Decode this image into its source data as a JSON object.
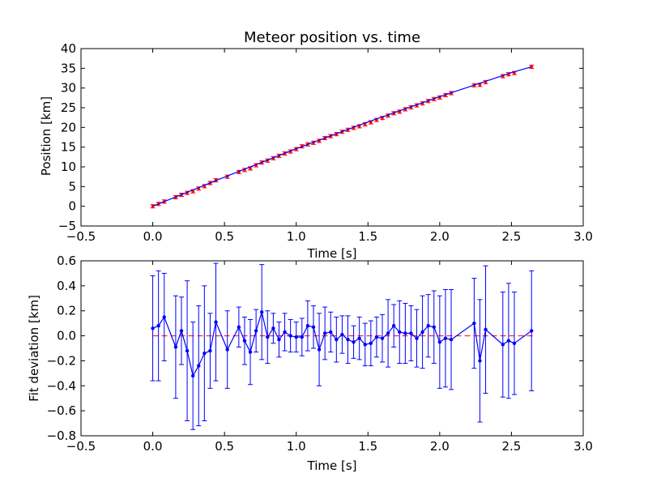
{
  "chart_data": [
    {
      "type": "line",
      "title": "Meteor position vs. time",
      "xlabel": "Time [s]",
      "ylabel": "Position [km]",
      "xlim": [
        -0.5,
        3.0
      ],
      "ylim": [
        -5,
        40
      ],
      "xticks": [
        -0.5,
        0.0,
        0.5,
        1.0,
        1.5,
        2.0,
        2.5,
        3.0
      ],
      "xtick_labels": [
        "−0.5",
        "0.0",
        "0.5",
        "1.0",
        "1.5",
        "2.0",
        "2.5",
        "3.0"
      ],
      "yticks": [
        -5,
        0,
        5,
        10,
        15,
        20,
        25,
        30,
        35,
        40
      ],
      "ytick_labels": [
        "−5",
        "0",
        "5",
        "10",
        "15",
        "20",
        "25",
        "30",
        "35",
        "40"
      ],
      "grid": false,
      "series": [
        {
          "style": "red errorbar points",
          "color": "#ff0000",
          "x": [
            0.0,
            0.04,
            0.08,
            0.16,
            0.2,
            0.24,
            0.28,
            0.32,
            0.36,
            0.4,
            0.44,
            0.52,
            0.6,
            0.64,
            0.68,
            0.72,
            0.76,
            0.8,
            0.84,
            0.88,
            0.92,
            0.96,
            1.0,
            1.04,
            1.08,
            1.12,
            1.16,
            1.2,
            1.24,
            1.28,
            1.32,
            1.36,
            1.4,
            1.44,
            1.48,
            1.52,
            1.56,
            1.6,
            1.64,
            1.68,
            1.72,
            1.76,
            1.8,
            1.84,
            1.88,
            1.92,
            1.96,
            2.0,
            2.04,
            2.08,
            2.24,
            2.28,
            2.32,
            2.44,
            2.48,
            2.52,
            2.64
          ],
          "y": [
            0.0,
            0.6,
            1.2,
            2.3,
            2.9,
            3.4,
            3.8,
            4.5,
            5.1,
            5.9,
            6.6,
            7.5,
            8.7,
            9.2,
            9.6,
            10.4,
            11.1,
            11.6,
            12.2,
            12.8,
            13.4,
            13.9,
            14.5,
            15.2,
            15.7,
            16.1,
            16.6,
            17.3,
            17.8,
            18.3,
            18.9,
            19.4,
            19.9,
            20.3,
            20.8,
            21.3,
            21.9,
            22.4,
            23.0,
            23.6,
            24.0,
            24.6,
            25.1,
            25.6,
            26.1,
            26.7,
            27.2,
            27.6,
            28.2,
            28.7,
            30.7,
            30.8,
            31.5,
            33.0,
            33.5,
            33.8,
            35.4
          ],
          "yerr": 0.42
        },
        {
          "style": "blue fit line",
          "color": "#0000ff",
          "x": [
            0.0,
            0.5,
            1.0,
            1.5,
            2.0,
            2.5,
            2.64
          ],
          "y": [
            0.0,
            7.4,
            14.6,
            21.4,
            27.8,
            33.9,
            35.4
          ]
        }
      ]
    },
    {
      "type": "line",
      "title": "",
      "xlabel": "Time [s]",
      "ylabel": "Fit deviation [km]",
      "xlim": [
        -0.5,
        3.0
      ],
      "ylim": [
        -0.8,
        0.6
      ],
      "xticks": [
        -0.5,
        0.0,
        0.5,
        1.0,
        1.5,
        2.0,
        2.5,
        3.0
      ],
      "xtick_labels": [
        "−0.5",
        "0.0",
        "0.5",
        "1.0",
        "1.5",
        "2.0",
        "2.5",
        "3.0"
      ],
      "yticks": [
        -0.8,
        -0.6,
        -0.4,
        -0.2,
        0.0,
        0.2,
        0.4,
        0.6
      ],
      "ytick_labels": [
        "−0.8",
        "−0.6",
        "−0.4",
        "−0.2",
        "0.0",
        "0.2",
        "0.4",
        "0.6"
      ],
      "grid": false,
      "reference_line": {
        "y": 0.0,
        "style": "dashed",
        "color": "#ff0000"
      },
      "series": [
        {
          "style": "blue line with error bars",
          "color": "#0000ff",
          "x": [
            0.0,
            0.04,
            0.08,
            0.16,
            0.2,
            0.24,
            0.28,
            0.32,
            0.36,
            0.4,
            0.44,
            0.52,
            0.6,
            0.64,
            0.68,
            0.72,
            0.76,
            0.8,
            0.84,
            0.88,
            0.92,
            0.96,
            1.0,
            1.04,
            1.08,
            1.12,
            1.16,
            1.2,
            1.24,
            1.28,
            1.32,
            1.36,
            1.4,
            1.44,
            1.48,
            1.52,
            1.56,
            1.6,
            1.64,
            1.68,
            1.72,
            1.76,
            1.8,
            1.84,
            1.88,
            1.92,
            1.96,
            2.0,
            2.04,
            2.08,
            2.24,
            2.28,
            2.32,
            2.44,
            2.48,
            2.52,
            2.64
          ],
          "y": [
            0.06,
            0.08,
            0.15,
            -0.09,
            0.04,
            -0.12,
            -0.32,
            -0.24,
            -0.14,
            -0.12,
            0.11,
            -0.11,
            0.07,
            -0.04,
            -0.13,
            0.04,
            0.19,
            -0.01,
            0.06,
            -0.03,
            0.03,
            0.0,
            -0.01,
            -0.01,
            0.08,
            0.07,
            -0.11,
            0.02,
            0.03,
            -0.03,
            0.01,
            -0.03,
            -0.05,
            -0.02,
            -0.07,
            -0.06,
            -0.01,
            -0.02,
            0.02,
            0.08,
            0.03,
            0.02,
            0.02,
            -0.02,
            0.03,
            0.08,
            0.07,
            -0.05,
            -0.02,
            -0.03,
            0.1,
            -0.2,
            0.05,
            -0.07,
            -0.04,
            -0.06,
            0.04
          ],
          "yerr": [
            0.42,
            0.44,
            0.35,
            0.41,
            0.27,
            0.56,
            0.43,
            0.48,
            0.54,
            0.3,
            0.47,
            0.31,
            0.16,
            0.19,
            0.26,
            0.17,
            0.38,
            0.21,
            0.12,
            0.14,
            0.15,
            0.13,
            0.12,
            0.15,
            0.2,
            0.17,
            0.29,
            0.21,
            0.16,
            0.18,
            0.15,
            0.19,
            0.13,
            0.17,
            0.17,
            0.18,
            0.16,
            0.19,
            0.27,
            0.17,
            0.25,
            0.24,
            0.22,
            0.23,
            0.29,
            0.25,
            0.29,
            0.37,
            0.39,
            0.4,
            0.36,
            0.49,
            0.51,
            0.42,
            0.46,
            0.41,
            0.48
          ]
        }
      ]
    }
  ]
}
